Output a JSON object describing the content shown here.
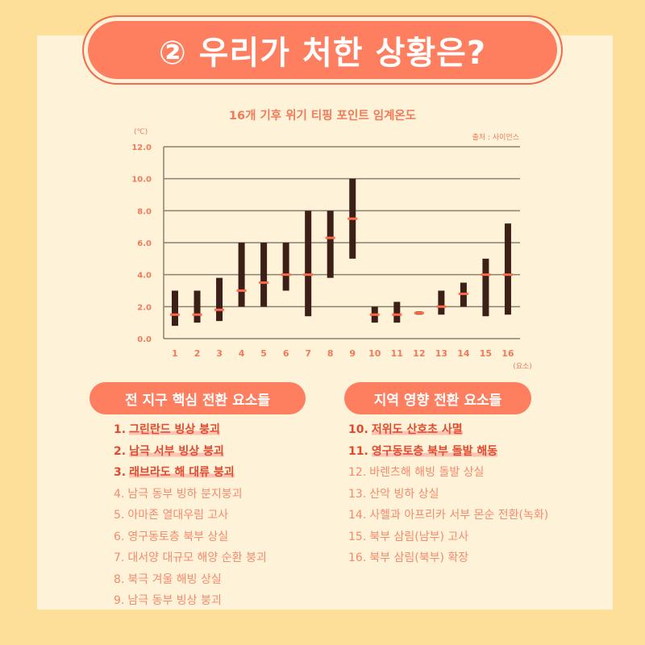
{
  "header": {
    "title": "② 우리가 처한 상황은?"
  },
  "chart_data": {
    "type": "range-bar",
    "title": "16개 기후 위기 티핑 포인트 임계온도",
    "source": "출처 : 사이언스",
    "ylabel": "(℃)",
    "xlabel": "(요소)",
    "ylim": [
      0,
      12
    ],
    "yticks": [
      "0.0",
      "2.0",
      "4.0",
      "6.0",
      "8.0",
      "10.0",
      "12.0"
    ],
    "categories": [
      "1",
      "2",
      "3",
      "4",
      "5",
      "6",
      "7",
      "8",
      "9",
      "10",
      "11",
      "12",
      "13",
      "14",
      "15",
      "16"
    ],
    "ranges": [
      {
        "low": 0.8,
        "high": 3.0,
        "mid": 1.5
      },
      {
        "low": 1.0,
        "high": 3.0,
        "mid": 1.5
      },
      {
        "low": 1.1,
        "high": 3.8,
        "mid": 1.8
      },
      {
        "low": 2.0,
        "high": 6.0,
        "mid": 3.0
      },
      {
        "low": 2.0,
        "high": 6.0,
        "mid": 3.5
      },
      {
        "low": 3.0,
        "high": 6.0,
        "mid": 4.0
      },
      {
        "low": 1.4,
        "high": 8.0,
        "mid": 4.0
      },
      {
        "low": 3.8,
        "high": 8.0,
        "mid": 6.3
      },
      {
        "low": 5.0,
        "high": 10.0,
        "mid": 7.5
      },
      {
        "low": 1.0,
        "high": 2.0,
        "mid": 1.5
      },
      {
        "low": 1.0,
        "high": 2.3,
        "mid": 1.5
      },
      {
        "low": 1.5,
        "high": 1.7,
        "mid": 1.6
      },
      {
        "low": 1.5,
        "high": 3.0,
        "mid": 2.0
      },
      {
        "low": 2.0,
        "high": 3.5,
        "mid": 2.8
      },
      {
        "low": 1.4,
        "high": 5.0,
        "mid": 4.0
      },
      {
        "low": 1.5,
        "high": 7.2,
        "mid": 4.0
      }
    ],
    "colors": {
      "range": "#3c1f16",
      "mid": "#ff6a4a",
      "grid": "#8a7f72",
      "text": "#f07a5a"
    },
    "grid": true
  },
  "global": {
    "label": "전 지구 핵심 전환 요소들",
    "items": [
      {
        "num": "1.",
        "text": "그린란드 빙상 붕괴",
        "highlight": true
      },
      {
        "num": "2.",
        "text": "남극 서부 빙상 붕괴",
        "highlight": true
      },
      {
        "num": "3.",
        "text": "래브라도 해 대류 붕괴",
        "highlight": true
      },
      {
        "num": "4.",
        "text": "남극 동부 빙하 분지붕괴",
        "highlight": false
      },
      {
        "num": "5.",
        "text": "아마존 열대우림 고사",
        "highlight": false
      },
      {
        "num": "6.",
        "text": "영구동토층 북부 상실",
        "highlight": false
      },
      {
        "num": "7.",
        "text": "대서양 대규모 해양 순환 붕괴",
        "highlight": false
      },
      {
        "num": "8.",
        "text": "북극 겨울 해빙 상실",
        "highlight": false
      },
      {
        "num": "9.",
        "text": "남극 동부 빙상 붕괴",
        "highlight": false
      }
    ]
  },
  "regional": {
    "label": "지역 영향 전환 요소들",
    "items": [
      {
        "num": "10.",
        "text": "저위도 산호초 사멸",
        "highlight": true
      },
      {
        "num": "11.",
        "text": "영구동토층 북부 돌발 해동",
        "highlight": true
      },
      {
        "num": "12.",
        "text": "바렌츠해 해빙 돌발 상실",
        "highlight": false
      },
      {
        "num": "13.",
        "text": "산악 빙하 상실",
        "highlight": false
      },
      {
        "num": "14.",
        "text": "사헬과 아프리카 서부 몬순 전환(녹화)",
        "highlight": false
      },
      {
        "num": "15.",
        "text": "북부 삼림(남부) 고사",
        "highlight": false
      },
      {
        "num": "16.",
        "text": "북부 삼림(북부) 확장",
        "highlight": false
      }
    ]
  }
}
